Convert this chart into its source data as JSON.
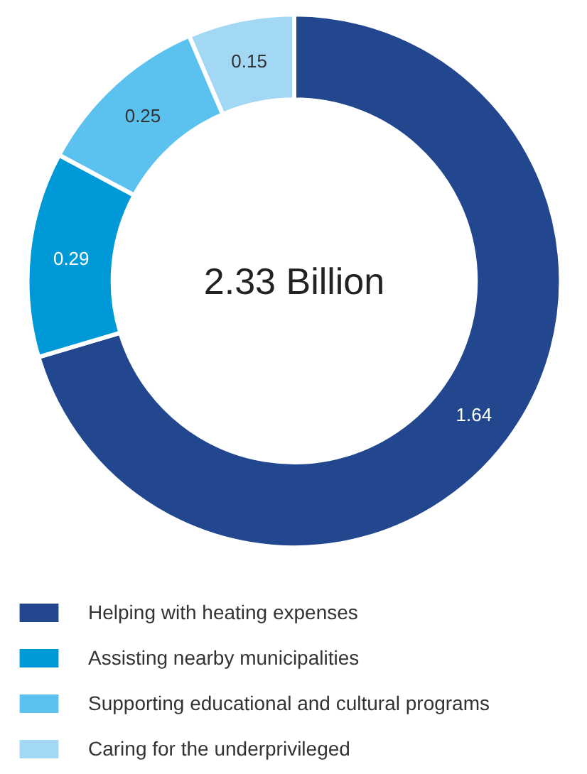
{
  "chart_data": {
    "type": "donut",
    "categories": [
      "Helping with heating expenses",
      "Assisting nearby municipalities",
      "Supporting educational and cultural programs",
      "Caring for the underprivileged"
    ],
    "values": [
      1.64,
      0.29,
      0.25,
      0.15
    ],
    "colors": [
      "#22478f",
      "#0099d8",
      "#5bc2ef",
      "#a3d8f5"
    ],
    "data_labels": true,
    "annotations": [
      "2.33 Billion"
    ],
    "legend": "bottom"
  }
}
